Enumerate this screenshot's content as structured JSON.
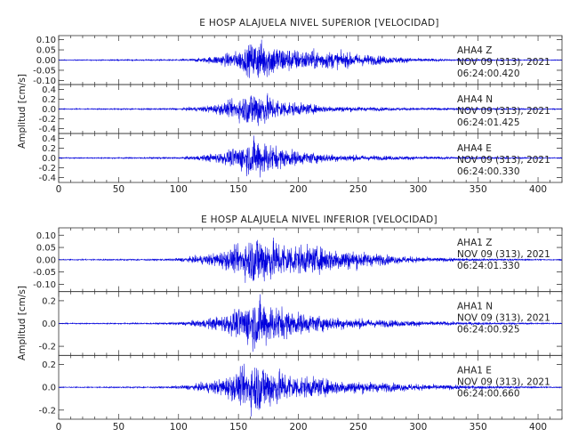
{
  "page": {
    "background": "#ffffff"
  },
  "style": {
    "trace_color": "#0000dd",
    "axis_color": "#333333"
  },
  "chart_data": [
    {
      "type": "line",
      "title": "E HOSP ALAJUELA NIVEL SUPERIOR [VELOCIDAD]",
      "ylabel": "Amplitud [cm/s]",
      "xlim": [
        0,
        420
      ],
      "xticks": [
        0,
        50,
        100,
        150,
        200,
        250,
        300,
        350,
        400
      ],
      "grid": false,
      "series": [
        {
          "name": "AHA4 Z",
          "station": "AHA4",
          "component": "Z",
          "date": "NOV 09 (313), 2021",
          "time": "06:24:00.420",
          "ylim": [
            -0.12,
            0.12
          ],
          "yticks": [
            -0.1,
            -0.05,
            0.0,
            0.05,
            0.1
          ],
          "yticklabels": [
            "-0.10",
            "-0.05",
            "0.00",
            "0.05",
            "0.10"
          ],
          "envelope": [
            [
              0,
              0.002
            ],
            [
              100,
              0.004
            ],
            [
              120,
              0.012
            ],
            [
              135,
              0.028
            ],
            [
              150,
              0.05
            ],
            [
              160,
              0.085
            ],
            [
              166,
              0.11
            ],
            [
              172,
              0.1
            ],
            [
              180,
              0.085
            ],
            [
              190,
              0.065
            ],
            [
              200,
              0.055
            ],
            [
              220,
              0.05
            ],
            [
              240,
              0.04
            ],
            [
              260,
              0.028
            ],
            [
              280,
              0.018
            ],
            [
              300,
              0.01
            ],
            [
              330,
              0.005
            ],
            [
              420,
              0.002
            ]
          ]
        },
        {
          "name": "AHA4 N",
          "station": "AHA4",
          "component": "N",
          "date": "NOV 09 (313), 2021",
          "time": "06:24:01.425",
          "ylim": [
            -0.5,
            0.5
          ],
          "yticks": [
            -0.4,
            -0.2,
            0.0,
            0.2,
            0.4
          ],
          "yticklabels": [
            "-0.4",
            "-0.2",
            "0.0",
            "0.2",
            "0.4"
          ],
          "envelope": [
            [
              0,
              0.01
            ],
            [
              100,
              0.02
            ],
            [
              120,
              0.06
            ],
            [
              140,
              0.15
            ],
            [
              155,
              0.3
            ],
            [
              163,
              0.45
            ],
            [
              170,
              0.38
            ],
            [
              180,
              0.25
            ],
            [
              195,
              0.15
            ],
            [
              220,
              0.08
            ],
            [
              250,
              0.05
            ],
            [
              300,
              0.03
            ],
            [
              350,
              0.02
            ],
            [
              420,
              0.01
            ]
          ]
        },
        {
          "name": "AHA4 E",
          "station": "AHA4",
          "component": "E",
          "date": "NOV 09 (313), 2021",
          "time": "06:24:00.330",
          "ylim": [
            -0.5,
            0.5
          ],
          "yticks": [
            -0.4,
            -0.2,
            0.0,
            0.2,
            0.4
          ],
          "yticklabels": [
            "-0.4",
            "-0.2",
            "0.0",
            "0.2",
            "0.4"
          ],
          "envelope": [
            [
              0,
              0.01
            ],
            [
              100,
              0.02
            ],
            [
              120,
              0.06
            ],
            [
              140,
              0.15
            ],
            [
              155,
              0.32
            ],
            [
              165,
              0.45
            ],
            [
              172,
              0.4
            ],
            [
              182,
              0.25
            ],
            [
              200,
              0.15
            ],
            [
              230,
              0.08
            ],
            [
              270,
              0.05
            ],
            [
              320,
              0.03
            ],
            [
              420,
              0.01
            ]
          ]
        }
      ]
    },
    {
      "type": "line",
      "title": "E HOSP ALAJUELA NIVEL INFERIOR [VELOCIDAD]",
      "ylabel": "Amplitud [cm/s]",
      "xlim": [
        0,
        420
      ],
      "xticks": [
        0,
        50,
        100,
        150,
        200,
        250,
        300,
        350,
        400
      ],
      "grid": false,
      "series": [
        {
          "name": "AHA1 Z",
          "station": "AHA1",
          "component": "Z",
          "date": "NOV 09 (313), 2021",
          "time": "06:24:01.330",
          "ylim": [
            -0.13,
            0.13
          ],
          "yticks": [
            -0.1,
            -0.05,
            0.0,
            0.05,
            0.1
          ],
          "yticklabels": [
            "-0.10",
            "-0.05",
            "0.00",
            "0.05",
            "0.10"
          ],
          "envelope": [
            [
              0,
              0.002
            ],
            [
              90,
              0.004
            ],
            [
              110,
              0.012
            ],
            [
              130,
              0.03
            ],
            [
              150,
              0.06
            ],
            [
              160,
              0.1
            ],
            [
              166,
              0.12
            ],
            [
              172,
              0.105
            ],
            [
              182,
              0.085
            ],
            [
              200,
              0.065
            ],
            [
              220,
              0.055
            ],
            [
              240,
              0.045
            ],
            [
              260,
              0.03
            ],
            [
              280,
              0.018
            ],
            [
              310,
              0.01
            ],
            [
              350,
              0.005
            ],
            [
              420,
              0.002
            ]
          ]
        },
        {
          "name": "AHA1 N",
          "station": "AHA1",
          "component": "N",
          "date": "NOV 09 (313), 2021",
          "time": "06:24:00.925",
          "ylim": [
            -0.28,
            0.28
          ],
          "yticks": [
            -0.2,
            0.0,
            0.2
          ],
          "yticklabels": [
            "-0.2",
            "0.0",
            "0.2"
          ],
          "envelope": [
            [
              0,
              0.004
            ],
            [
              90,
              0.008
            ],
            [
              115,
              0.03
            ],
            [
              135,
              0.07
            ],
            [
              150,
              0.14
            ],
            [
              160,
              0.22
            ],
            [
              166,
              0.25
            ],
            [
              173,
              0.21
            ],
            [
              185,
              0.16
            ],
            [
              200,
              0.1
            ],
            [
              230,
              0.06
            ],
            [
              260,
              0.04
            ],
            [
              300,
              0.025
            ],
            [
              350,
              0.012
            ],
            [
              420,
              0.005
            ]
          ]
        },
        {
          "name": "AHA1 E",
          "station": "AHA1",
          "component": "E",
          "date": "NOV 09 (313), 2021",
          "time": "06:24:00.660",
          "ylim": [
            -0.28,
            0.28
          ],
          "yticks": [
            -0.2,
            0.0,
            0.2
          ],
          "yticklabels": [
            "-0.2",
            "0.0",
            "0.2"
          ],
          "envelope": [
            [
              0,
              0.004
            ],
            [
              90,
              0.008
            ],
            [
              115,
              0.03
            ],
            [
              135,
              0.08
            ],
            [
              150,
              0.15
            ],
            [
              160,
              0.22
            ],
            [
              166,
              0.25
            ],
            [
              173,
              0.22
            ],
            [
              185,
              0.16
            ],
            [
              200,
              0.11
            ],
            [
              230,
              0.07
            ],
            [
              260,
              0.05
            ],
            [
              300,
              0.03
            ],
            [
              350,
              0.015
            ],
            [
              420,
              0.005
            ]
          ]
        }
      ]
    }
  ]
}
